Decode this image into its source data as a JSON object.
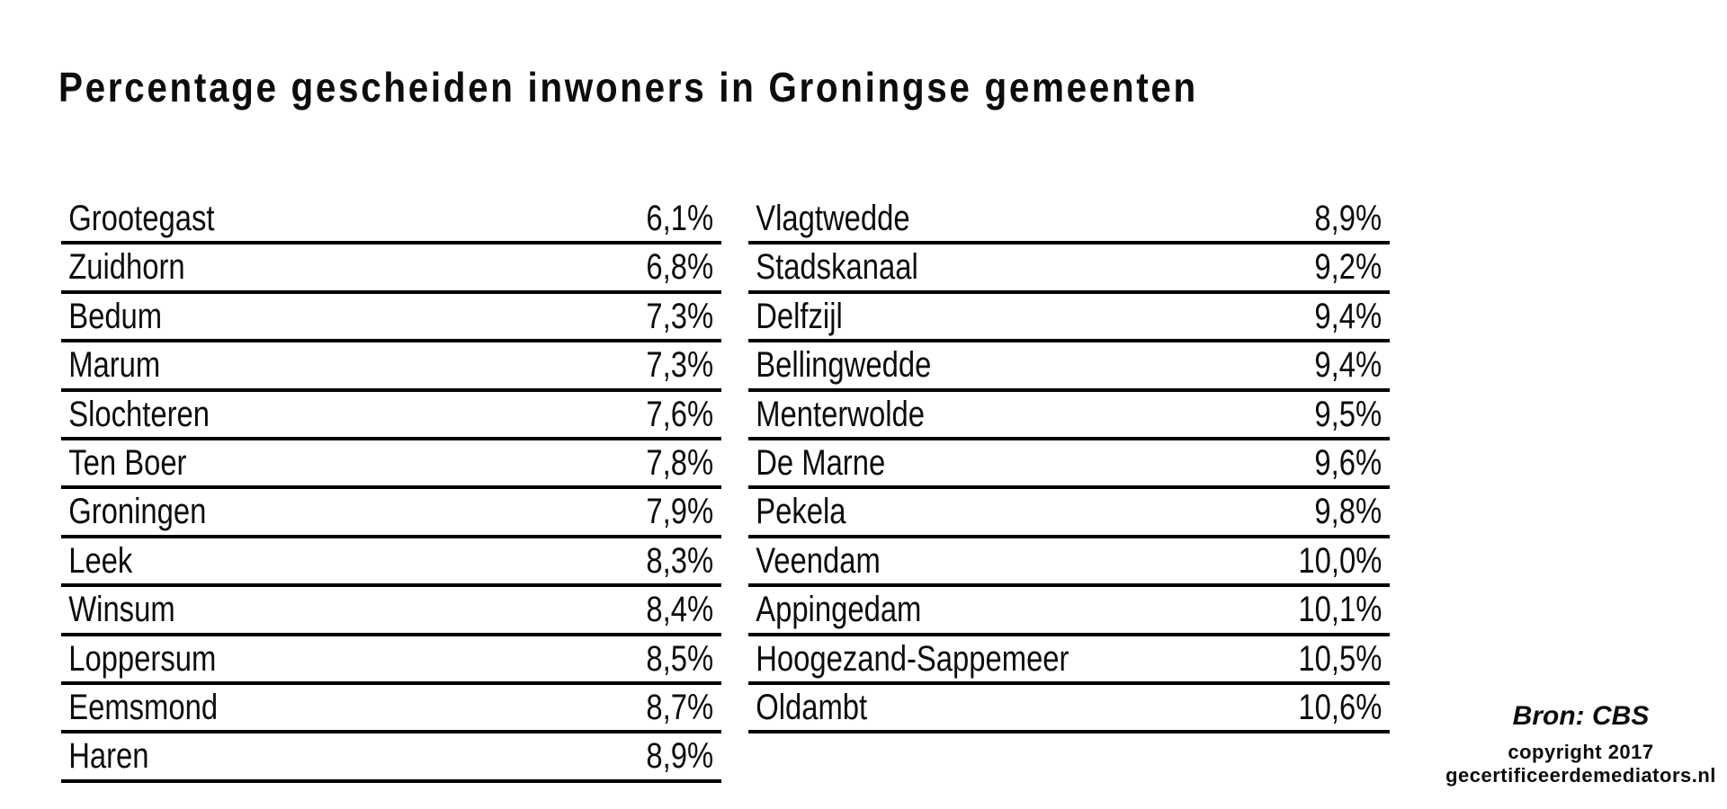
{
  "title": "Percentage gescheiden inwoners in Groningse gemeenten",
  "table": {
    "columns": [
      {
        "rows": [
          {
            "name": "Grootegast",
            "value": "6,1%"
          },
          {
            "name": "Zuidhorn",
            "value": "6,8%"
          },
          {
            "name": "Bedum",
            "value": "7,3%"
          },
          {
            "name": "Marum",
            "value": "7,3%"
          },
          {
            "name": "Slochteren",
            "value": "7,6%"
          },
          {
            "name": "Ten Boer",
            "value": "7,8%"
          },
          {
            "name": "Groningen",
            "value": "7,9%"
          },
          {
            "name": "Leek",
            "value": "8,3%"
          },
          {
            "name": "Winsum",
            "value": "8,4%"
          },
          {
            "name": "Loppersum",
            "value": "8,5%"
          },
          {
            "name": "Eemsmond",
            "value": "8,7%"
          },
          {
            "name": "Haren",
            "value": "8,9%"
          }
        ]
      },
      {
        "rows": [
          {
            "name": "Vlagtwedde",
            "value": "8,9%"
          },
          {
            "name": "Stadskanaal",
            "value": "9,2%"
          },
          {
            "name": "Delfzijl",
            "value": "9,4%"
          },
          {
            "name": "Bellingwedde",
            "value": "9,4%"
          },
          {
            "name": "Menterwolde",
            "value": "9,5%"
          },
          {
            "name": "De Marne",
            "value": "9,6%"
          },
          {
            "name": "Pekela",
            "value": "9,8%"
          },
          {
            "name": "Veendam",
            "value": "10,0%"
          },
          {
            "name": "Appingedam",
            "value": "10,1%"
          },
          {
            "name": "Hoogezand-Sappemeer",
            "value": "10,5%"
          },
          {
            "name": "Oldambt",
            "value": "10,6%"
          }
        ]
      }
    ]
  },
  "credits": {
    "source": "Bron: CBS",
    "copyright_line": "copyright 2017",
    "website": "gecertificeerdemediators.nl"
  },
  "colors": {
    "background": "#ffffff",
    "text": "#0d0d0d",
    "line": "#000000"
  },
  "chart_data": {
    "type": "table",
    "title": "Percentage gescheiden inwoners in Groningse gemeenten",
    "unit": "%",
    "value_format": "comma-decimal",
    "layout": "two-column list, sorted ascending by value; left column rows 1-12, right column rows 13-23",
    "categories": [
      "Grootegast",
      "Zuidhorn",
      "Bedum",
      "Marum",
      "Slochteren",
      "Ten Boer",
      "Groningen",
      "Leek",
      "Winsum",
      "Loppersum",
      "Eemsmond",
      "Haren",
      "Vlagtwedde",
      "Stadskanaal",
      "Delfzijl",
      "Bellingwedde",
      "Menterwolde",
      "De Marne",
      "Pekela",
      "Veendam",
      "Appingedam",
      "Hoogezand-Sappemeer",
      "Oldambt"
    ],
    "values": [
      6.1,
      6.8,
      7.3,
      7.3,
      7.6,
      7.8,
      7.9,
      8.3,
      8.4,
      8.5,
      8.7,
      8.9,
      8.9,
      9.2,
      9.4,
      9.4,
      9.5,
      9.6,
      9.8,
      10.0,
      10.1,
      10.5,
      10.6
    ],
    "source": "Bron: CBS"
  }
}
